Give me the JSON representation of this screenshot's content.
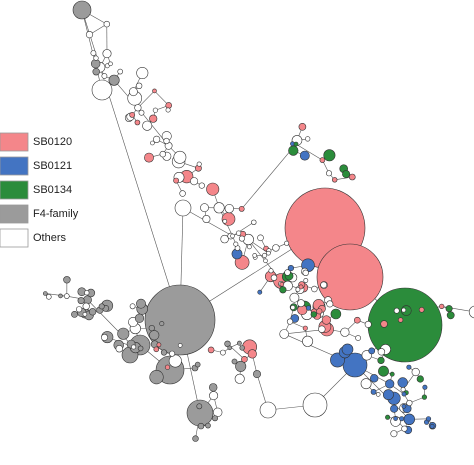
{
  "legend": {
    "items": [
      {
        "label": "SB0120",
        "color": "#f4868a"
      },
      {
        "label": "SB0121",
        "color": "#4374c2"
      },
      {
        "label": "SB0134",
        "color": "#2b8c3b"
      },
      {
        "label": "F4-family",
        "color": "#9b9b9b"
      },
      {
        "label": "Others",
        "color": "#ffffff"
      }
    ]
  }
}
